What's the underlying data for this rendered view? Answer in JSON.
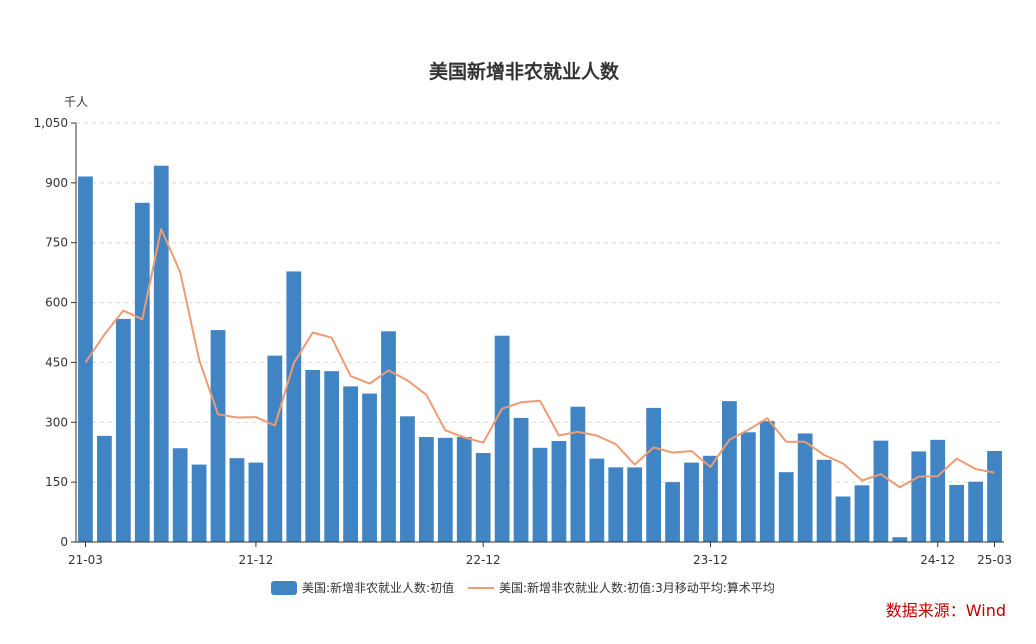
{
  "chart_data": {
    "type": "bar",
    "title": "美国新增非农就业人数",
    "unit": "千人",
    "ylim": [
      0,
      1050
    ],
    "yticks": [
      0,
      150,
      300,
      450,
      600,
      750,
      900,
      1050
    ],
    "ytick_labels": [
      "0",
      "150",
      "300",
      "450",
      "600",
      "750",
      "900",
      "1,050"
    ],
    "xtick_labels": [
      {
        "index": 0,
        "label": "21-03"
      },
      {
        "index": 9,
        "label": "21-12"
      },
      {
        "index": 21,
        "label": "22-12"
      },
      {
        "index": 33,
        "label": "23-12"
      },
      {
        "index": 45,
        "label": "24-12"
      },
      {
        "index": 48,
        "label": "25-03"
      }
    ],
    "categories": [
      "21-03",
      "21-04",
      "21-05",
      "21-06",
      "21-07",
      "21-08",
      "21-09",
      "21-10",
      "21-11",
      "21-12",
      "22-01",
      "22-02",
      "22-03",
      "22-04",
      "22-05",
      "22-06",
      "22-07",
      "22-08",
      "22-09",
      "22-10",
      "22-11",
      "22-12",
      "23-01",
      "23-02",
      "23-03",
      "23-04",
      "23-05",
      "23-06",
      "23-07",
      "23-08",
      "23-09",
      "23-10",
      "23-11",
      "23-12",
      "24-01",
      "24-02",
      "24-03",
      "24-04",
      "24-05",
      "24-06",
      "24-07",
      "24-08",
      "24-09",
      "24-10",
      "24-11",
      "24-12",
      "25-01",
      "25-02",
      "25-03"
    ],
    "series": [
      {
        "name": "美国:新增非农就业人数:初值",
        "kind": "bar",
        "color": "#4084c4",
        "values": [
          916,
          266,
          559,
          850,
          943,
          235,
          194,
          531,
          210,
          199,
          467,
          678,
          431,
          428,
          390,
          372,
          528,
          315,
          263,
          261,
          263,
          223,
          517,
          311,
          236,
          253,
          339,
          209,
          187,
          187,
          336,
          150,
          199,
          216,
          353,
          275,
          303,
          175,
          272,
          206,
          114,
          142,
          254,
          12,
          227,
          256,
          143,
          151,
          228
        ]
      },
      {
        "name": "美国:新增非农就业人数:初值:3月移动平均:算术平均",
        "kind": "line",
        "color": "#ee9b73",
        "values": [
          450,
          520,
          580,
          558,
          784,
          676,
          457,
          320,
          312,
          313,
          292,
          448,
          525,
          512,
          416,
          397,
          430,
          405,
          369,
          280,
          262,
          249,
          334,
          350,
          354,
          267,
          276,
          267,
          245,
          194,
          237,
          224,
          228,
          188,
          256,
          281,
          310,
          251,
          251,
          218,
          197,
          154,
          170,
          137,
          164,
          165,
          209,
          183,
          174
        ]
      }
    ],
    "legend_position": "bottom",
    "grid": "horizontal-dashed"
  },
  "source_label": "数据来源：Wind"
}
